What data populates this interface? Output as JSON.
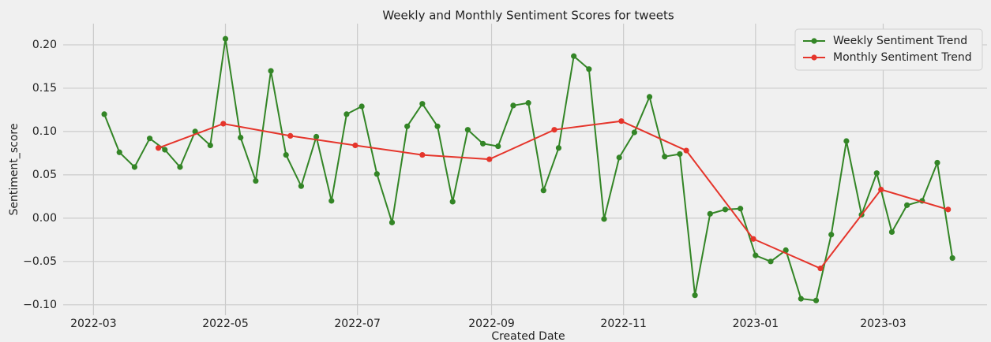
{
  "chart_data": {
    "type": "line",
    "title": "Weekly and Monthly Sentiment Scores for tweets",
    "xlabel": "Created Date",
    "ylabel": "Sentiment_score",
    "xlim": [
      "2022-02-15",
      "2023-04-18"
    ],
    "xticks": [
      {
        "value": "2022-03-01",
        "label": "2022-03"
      },
      {
        "value": "2022-05-01",
        "label": "2022-05"
      },
      {
        "value": "2022-07-01",
        "label": "2022-07"
      },
      {
        "value": "2022-09-01",
        "label": "2022-09"
      },
      {
        "value": "2022-11-01",
        "label": "2022-11"
      },
      {
        "value": "2023-01-01",
        "label": "2023-01"
      },
      {
        "value": "2023-03-01",
        "label": "2023-03"
      }
    ],
    "ylim": [
      -0.112,
      0.2245
    ],
    "yticks": [
      {
        "value": -0.1,
        "label": "−0.10"
      },
      {
        "value": -0.05,
        "label": "−0.05"
      },
      {
        "value": 0,
        "label": "0.00"
      },
      {
        "value": 0.05,
        "label": "0.05"
      },
      {
        "value": 0.1,
        "label": "0.10"
      },
      {
        "value": 0.15,
        "label": "0.15"
      },
      {
        "value": 0.2,
        "label": "0.20"
      }
    ],
    "grid": true,
    "legend": "upper right",
    "series": [
      {
        "name": "Weekly Sentiment Trend",
        "color": "#338526",
        "x": [
          "2022-03-06",
          "2022-03-13",
          "2022-03-20",
          "2022-03-27",
          "2022-04-03",
          "2022-04-10",
          "2022-04-17",
          "2022-04-24",
          "2022-05-01",
          "2022-05-08",
          "2022-05-15",
          "2022-05-22",
          "2022-05-29",
          "2022-06-05",
          "2022-06-12",
          "2022-06-19",
          "2022-06-26",
          "2022-07-03",
          "2022-07-10",
          "2022-07-17",
          "2022-07-24",
          "2022-07-31",
          "2022-08-07",
          "2022-08-14",
          "2022-08-21",
          "2022-08-28",
          "2022-09-04",
          "2022-09-11",
          "2022-09-18",
          "2022-09-25",
          "2022-10-02",
          "2022-10-09",
          "2022-10-16",
          "2022-10-23",
          "2022-10-30",
          "2022-11-06",
          "2022-11-13",
          "2022-11-20",
          "2022-11-27",
          "2022-12-04",
          "2022-12-11",
          "2022-12-18",
          "2022-12-25",
          "2023-01-01",
          "2023-01-08",
          "2023-01-15",
          "2023-01-22",
          "2023-01-29",
          "2023-02-05",
          "2023-02-12",
          "2023-02-19",
          "2023-02-26",
          "2023-03-05",
          "2023-03-12",
          "2023-03-19",
          "2023-03-26",
          "2023-04-02"
        ],
        "values": [
          0.12,
          0.076,
          0.059,
          0.092,
          0.079,
          0.059,
          0.1,
          0.084,
          0.207,
          0.093,
          0.043,
          0.17,
          0.073,
          0.037,
          0.094,
          0.02,
          0.12,
          0.129,
          0.051,
          -0.005,
          0.106,
          0.132,
          0.106,
          0.019,
          0.102,
          0.086,
          0.083,
          0.13,
          0.133,
          0.032,
          0.081,
          0.187,
          0.172,
          -0.001,
          0.07,
          0.099,
          0.14,
          0.071,
          0.074,
          -0.089,
          0.005,
          0.01,
          0.011,
          -0.043,
          -0.05,
          -0.037,
          -0.093,
          -0.095,
          -0.019,
          0.089,
          0.004,
          0.052,
          -0.016,
          0.015,
          0.02,
          0.064,
          -0.046
        ]
      },
      {
        "name": "Monthly Sentiment Trend",
        "color": "#e5352b",
        "x": [
          "2022-03-31",
          "2022-04-30",
          "2022-05-31",
          "2022-06-30",
          "2022-07-31",
          "2022-08-31",
          "2022-09-30",
          "2022-10-31",
          "2022-11-30",
          "2022-12-31",
          "2023-01-31",
          "2023-02-28",
          "2023-03-31"
        ],
        "values": [
          0.081,
          0.109,
          0.095,
          0.084,
          0.073,
          0.068,
          0.102,
          0.112,
          0.078,
          -0.024,
          -0.058,
          0.033,
          0.01
        ]
      }
    ]
  }
}
